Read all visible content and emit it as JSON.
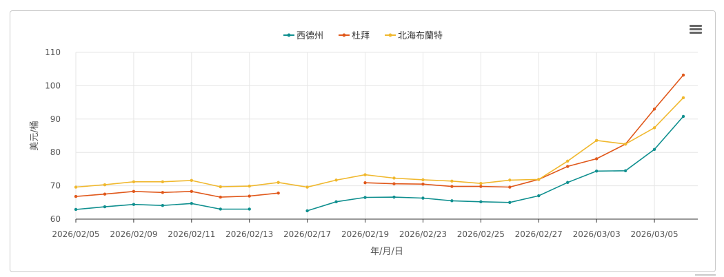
{
  "chart_data": {
    "type": "line",
    "xlabel": "年/月/日",
    "ylabel": "美元/桶",
    "ylim": [
      60,
      110
    ],
    "yticks": [
      60,
      70,
      80,
      90,
      100,
      110
    ],
    "grid": true,
    "legend_position": "top-center",
    "x": [
      "2026/02/05",
      "2026/02/06",
      "2026/02/09",
      "2026/02/10",
      "2026/02/11",
      "2026/02/12",
      "2026/02/13",
      "2026/02/16",
      "2026/02/17",
      "2026/02/18",
      "2026/02/19",
      "2026/02/20",
      "2026/02/23",
      "2026/02/24",
      "2026/02/25",
      "2026/02/26",
      "2026/02/27",
      "2026/03/02",
      "2026/03/03",
      "2026/03/04",
      "2026/03/05",
      "2026/03/06"
    ],
    "xtick_labels": [
      "2026/02/05",
      "2026/02/09",
      "2026/02/11",
      "2026/02/13",
      "2026/02/17",
      "2026/02/19",
      "2026/02/23",
      "2026/02/25",
      "2026/02/27",
      "2026/03/03",
      "2026/03/05"
    ],
    "series": [
      {
        "name": "西德州",
        "color": "#0f8f8f",
        "values": [
          62.9,
          63.7,
          64.4,
          64.1,
          64.7,
          63.0,
          63.0,
          null,
          62.5,
          65.2,
          66.5,
          66.6,
          66.3,
          65.5,
          65.2,
          65.0,
          67.0,
          71.0,
          74.4,
          74.5,
          80.9,
          90.8
        ]
      },
      {
        "name": "杜拜",
        "color": "#e0581b",
        "values": [
          66.8,
          67.5,
          68.3,
          68.0,
          68.3,
          66.6,
          66.9,
          67.8,
          null,
          null,
          70.9,
          70.6,
          70.5,
          69.8,
          69.8,
          69.6,
          71.9,
          75.8,
          78.1,
          82.5,
          93.0,
          103.2
        ]
      },
      {
        "name": "北海布蘭特",
        "color": "#f0b82e",
        "values": [
          69.6,
          70.3,
          71.2,
          71.2,
          71.6,
          69.7,
          69.9,
          71.0,
          69.6,
          71.7,
          73.3,
          72.3,
          71.8,
          71.4,
          70.7,
          71.7,
          71.9,
          77.4,
          83.6,
          82.5,
          87.4,
          96.4
        ]
      }
    ]
  }
}
